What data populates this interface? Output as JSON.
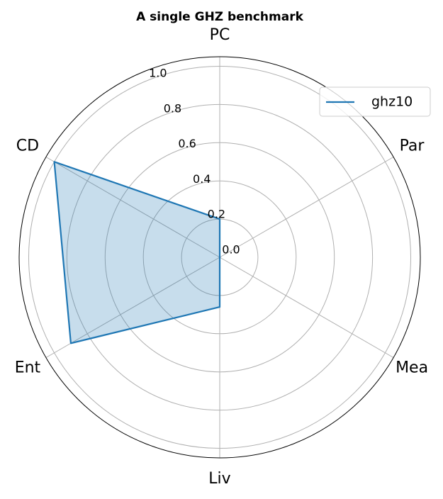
{
  "chart_data": {
    "type": "radar",
    "title": "A single GHZ benchmark",
    "categories": [
      "PC",
      "CD",
      "Ent",
      "Liv",
      "Mea",
      "Par"
    ],
    "series": [
      {
        "name": "ghz10",
        "color": "#1f77b4",
        "values": [
          0.2,
          1.0,
          0.9,
          0.26,
          0,
          0
        ]
      }
    ],
    "ylim": [
      0,
      1.05
    ],
    "yticks": [
      {
        "value": 0,
        "label": "0.0"
      },
      0.2,
      0.4,
      0.6,
      0.8,
      {
        "value": 1,
        "label": "1.0"
      }
    ],
    "grid": true,
    "legend": "upper right"
  }
}
